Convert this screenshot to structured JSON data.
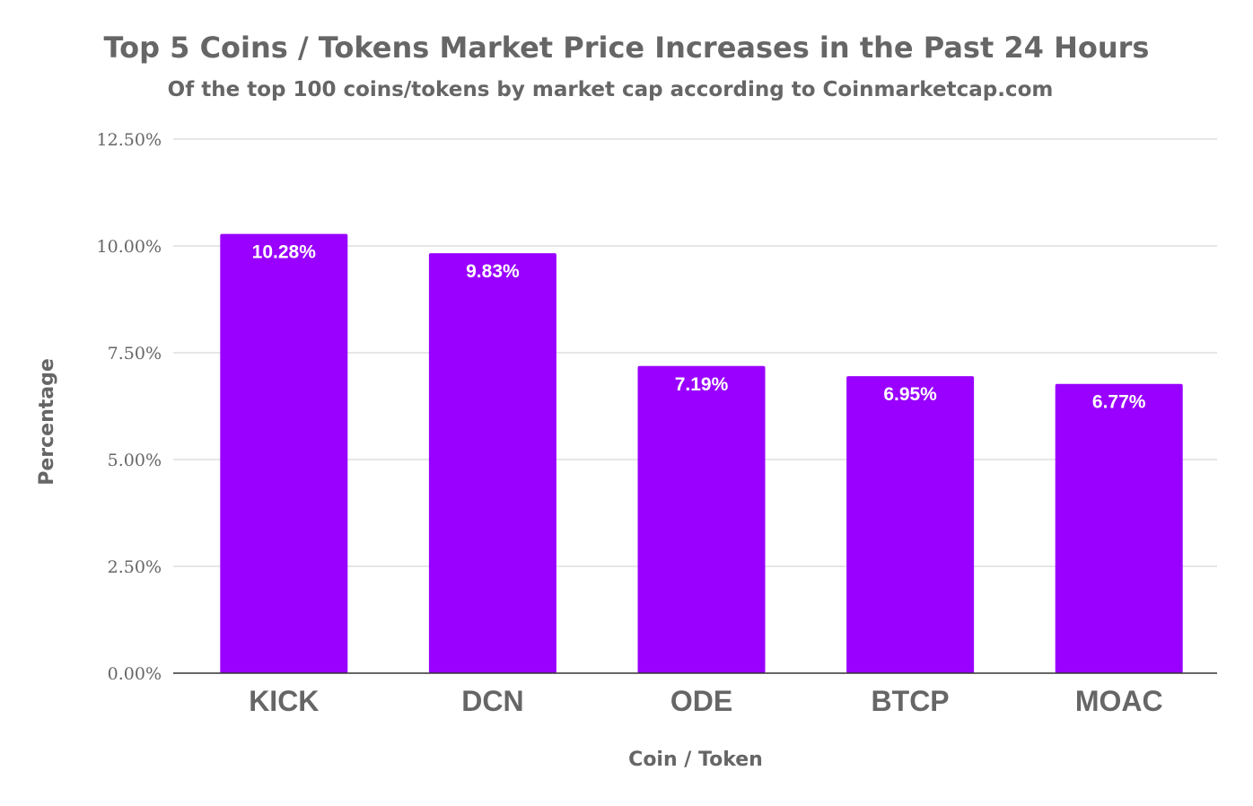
{
  "chart_data": {
    "type": "bar",
    "title": "Top 5 Coins / Tokens Market Price Increases in the Past 24 Hours",
    "subtitle": "Of the top 100 coins/tokens by market cap according to Coinmarketcap.com",
    "xlabel": "Coin / Token",
    "ylabel": "Percentage",
    "categories": [
      "KICK",
      "DCN",
      "ODE",
      "BTCP",
      "MOAC"
    ],
    "values": [
      10.28,
      9.83,
      7.19,
      6.95,
      6.77
    ],
    "data_labels": [
      "10.28%",
      "9.83%",
      "7.19%",
      "6.95%",
      "6.77%"
    ],
    "ylim": [
      0,
      12.5
    ],
    "y_ticks": [
      0,
      2.5,
      5,
      7.5,
      10,
      12.5
    ],
    "y_tick_labels": [
      "0.00%",
      "2.50%",
      "5.00%",
      "7.50%",
      "10.00%",
      "12.50%"
    ],
    "bar_color": "#9900ff",
    "grid": true,
    "legend": "none"
  }
}
